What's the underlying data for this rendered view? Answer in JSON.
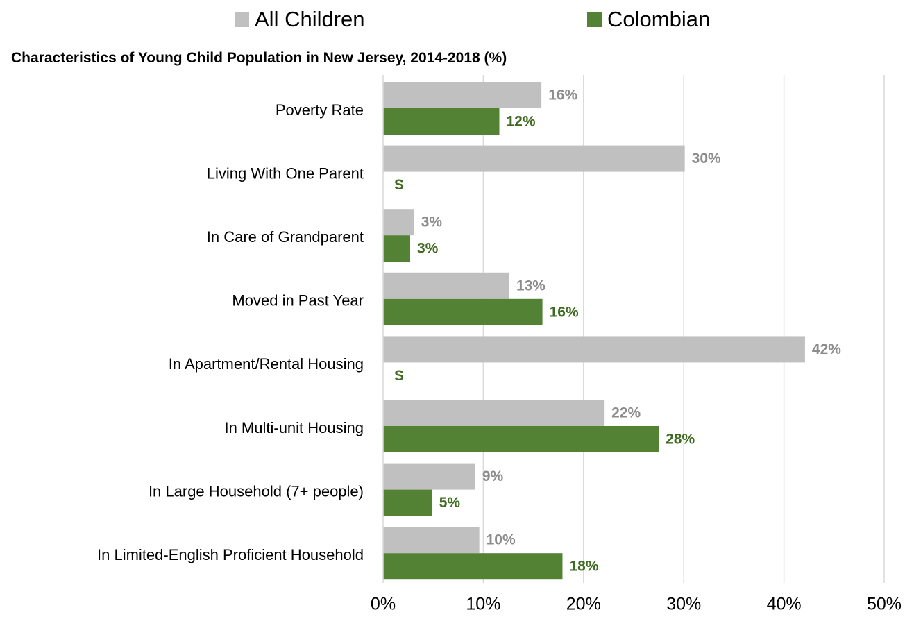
{
  "legend": {
    "items": [
      {
        "label": "All Children",
        "color": "#c0c0c0"
      },
      {
        "label": "Colombian",
        "color": "#548235"
      }
    ]
  },
  "chart_data": {
    "type": "bar",
    "orientation": "horizontal",
    "title": "Characteristics of Young Child Population in New Jersey, 2014-2018 (%)",
    "xlabel": "",
    "ylabel": "",
    "xlim": [
      0,
      50
    ],
    "x_ticks": [
      0,
      10,
      20,
      30,
      40,
      50
    ],
    "x_tick_labels": [
      "0%",
      "10%",
      "20%",
      "30%",
      "40%",
      "50%"
    ],
    "grid": true,
    "legend_position": "top",
    "categories": [
      "Poverty Rate",
      "Living With One Parent",
      "In Care of Grandparent",
      "Moved in Past Year",
      "In Apartment/Rental Housing",
      "In Multi-unit Housing",
      "In Large Household (7+ people)",
      "In Limited-English Proficient Household"
    ],
    "series": [
      {
        "name": "All Children",
        "color": "#c0c0c0",
        "label_color": "#8c8c8c",
        "values": [
          15.8,
          30.1,
          3.1,
          12.6,
          42.1,
          22.1,
          9.2,
          9.6
        ],
        "labels": [
          "16%",
          "30%",
          "3%",
          "13%",
          "42%",
          "22%",
          "9%",
          "10%"
        ]
      },
      {
        "name": "Colombian",
        "color": "#548235",
        "label_color": "#3d6b1f",
        "values": [
          11.6,
          null,
          2.7,
          15.9,
          null,
          27.5,
          4.9,
          17.9
        ],
        "labels": [
          "12%",
          "S",
          "3%",
          "16%",
          "S",
          "28%",
          "5%",
          "18%"
        ]
      }
    ]
  }
}
